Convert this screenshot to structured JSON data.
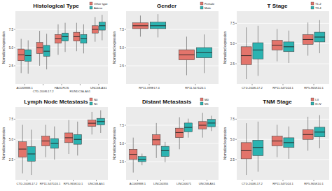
{
  "chart_data": [
    {
      "type": "box",
      "title": "Histological Type",
      "y_label": "Normalized expression",
      "categories": [
        "AC069888.1",
        "CTD-2008L17.2",
        "HAGLROS",
        "RUNDC3A-AS1",
        "UNC5B-AS1"
      ],
      "ylim": [
        0,
        10
      ],
      "yticks": [
        {
          "value": 2.5,
          "label": "2.5"
        },
        {
          "value": 5,
          "label": "5.0"
        },
        {
          "value": 7.5,
          "label": "7.5"
        }
      ],
      "grid": true,
      "legend": "top-right",
      "series": [
        {
          "name": "Other type",
          "color": "#E3746B",
          "q1": [
            3.2,
            4.2,
            5.6,
            5.9,
            7.0
          ],
          "median": [
            4.0,
            5.0,
            6.2,
            6.5,
            7.5
          ],
          "q3": [
            4.8,
            5.7,
            6.8,
            7.1,
            8.0
          ],
          "whisker_low": [
            1.5,
            2.5,
            4.0,
            4.5,
            5.8
          ],
          "whisker_high": [
            6.2,
            7.3,
            8.2,
            8.4,
            9.2
          ]
        },
        {
          "name": "Adeno",
          "color": "#2BB3B1",
          "q1": [
            3.1,
            3.8,
            5.9,
            5.6,
            7.4
          ],
          "median": [
            3.9,
            4.5,
            6.5,
            6.2,
            8.0
          ],
          "q3": [
            4.7,
            5.3,
            7.0,
            6.8,
            8.5
          ],
          "whisker_low": [
            1.4,
            2.0,
            4.4,
            4.2,
            6.0
          ],
          "whisker_high": [
            6.0,
            6.9,
            8.4,
            8.2,
            9.5
          ]
        }
      ]
    },
    {
      "type": "box",
      "title": "Gender",
      "y_label": "Normalized expression",
      "categories": [
        "RP11-399E17.4",
        "RP11-547D24.1"
      ],
      "ylim": [
        0,
        10
      ],
      "yticks": [
        {
          "value": 2.5,
          "label": "2.5"
        },
        {
          "value": 5,
          "label": "5.0"
        },
        {
          "value": 7.5,
          "label": "7.5"
        }
      ],
      "grid": true,
      "legend": "top-right",
      "series": [
        {
          "name": "Female",
          "color": "#E3746B",
          "q1": [
            7.6,
            3.3
          ],
          "median": [
            8.0,
            4.0
          ],
          "q3": [
            8.4,
            4.7
          ],
          "whisker_low": [
            6.5,
            1.2
          ],
          "whisker_high": [
            9.4,
            6.5
          ]
        },
        {
          "name": "Male",
          "color": "#2BB3B1",
          "q1": [
            7.6,
            3.6
          ],
          "median": [
            8.0,
            4.3
          ],
          "q3": [
            8.5,
            5.0
          ],
          "whisker_low": [
            6.4,
            1.5
          ],
          "whisker_high": [
            9.6,
            6.8
          ]
        }
      ]
    },
    {
      "type": "box",
      "title": "T Stage",
      "y_label": "Normalized expression",
      "categories": [
        "CTD-2008L17.2",
        "RP11-547D24.1",
        "RP5-965K10.1"
      ],
      "ylim": [
        0,
        9
      ],
      "yticks": [
        {
          "value": 2.5,
          "label": "2.5"
        },
        {
          "value": 5,
          "label": "5.0"
        },
        {
          "value": 7.5,
          "label": "7.5"
        }
      ],
      "grid": true,
      "legend": "top-right",
      "series": [
        {
          "name": "T1-2",
          "color": "#E3746B",
          "q1": [
            2.4,
            4.2,
            4.9
          ],
          "median": [
            3.5,
            4.8,
            5.5
          ],
          "q3": [
            4.6,
            5.4,
            6.1
          ],
          "whisker_low": [
            0.6,
            2.8,
            3.5
          ],
          "whisker_high": [
            7.0,
            6.8,
            7.6
          ]
        },
        {
          "name": "T3-4",
          "color": "#2BB3B1",
          "q1": [
            3.1,
            4.0,
            5.2
          ],
          "median": [
            4.2,
            4.6,
            5.8
          ],
          "q3": [
            5.1,
            5.2,
            6.4
          ],
          "whisker_low": [
            1.0,
            2.6,
            3.8
          ],
          "whisker_high": [
            7.2,
            6.6,
            7.9
          ]
        }
      ]
    },
    {
      "type": "box",
      "title": "Lymph Node Metastasis",
      "y_label": "Normalized expression",
      "categories": [
        "CTD-2008L17.2",
        "RP11-547D24.1",
        "RP5-965K10.1",
        "UNC5B-AS1"
      ],
      "ylim": [
        0,
        9
      ],
      "yticks": [
        {
          "value": 2.5,
          "label": "2.5"
        },
        {
          "value": 5,
          "label": "5.0"
        },
        {
          "value": 7.5,
          "label": "7.5"
        }
      ],
      "grid": true,
      "legend": "top-right",
      "series": [
        {
          "name": "N0",
          "color": "#E3746B",
          "q1": [
            2.8,
            4.2,
            4.6,
            6.6
          ],
          "median": [
            3.8,
            4.8,
            5.2,
            7.0
          ],
          "q3": [
            4.7,
            5.4,
            5.8,
            7.4
          ],
          "whisker_low": [
            0.8,
            2.8,
            3.2,
            5.6
          ],
          "whisker_high": [
            6.8,
            6.8,
            7.4,
            8.4
          ]
        },
        {
          "name": "N1",
          "color": "#2BB3B1",
          "q1": [
            2.3,
            3.9,
            4.4,
            6.8
          ],
          "median": [
            3.2,
            4.5,
            5.0,
            7.2
          ],
          "q3": [
            4.1,
            5.1,
            5.6,
            7.6
          ],
          "whisker_low": [
            0.6,
            2.5,
            3.0,
            5.8
          ],
          "whisker_high": [
            6.2,
            6.6,
            7.2,
            8.6
          ]
        }
      ]
    },
    {
      "type": "box",
      "title": "Distant Metastasis",
      "y_label": "Normalized expression",
      "categories": [
        "AC069888.1",
        "LINC00355",
        "LINC00671",
        "UNC5B-AS1"
      ],
      "ylim": [
        0,
        10
      ],
      "yticks": [
        {
          "value": 2.5,
          "label": "2.5"
        },
        {
          "value": 5,
          "label": "5.0"
        },
        {
          "value": 7.5,
          "label": "7.5"
        }
      ],
      "grid": true,
      "legend": "top-right",
      "series": [
        {
          "name": "M0",
          "color": "#E3746B",
          "q1": [
            2.8,
            4.8,
            5.8,
            7.0
          ],
          "median": [
            3.5,
            5.5,
            6.5,
            7.5
          ],
          "q3": [
            4.2,
            6.2,
            7.1,
            8.0
          ],
          "whisker_low": [
            1.0,
            3.0,
            4.2,
            5.8
          ],
          "whisker_high": [
            5.8,
            7.8,
            8.6,
            9.2
          ]
        },
        {
          "name": "M1",
          "color": "#2BB3B1",
          "q1": [
            2.5,
            3.2,
            6.6,
            7.3
          ],
          "median": [
            2.8,
            4.0,
            7.2,
            7.8
          ],
          "q3": [
            3.2,
            4.6,
            7.8,
            8.3
          ],
          "whisker_low": [
            2.0,
            2.4,
            5.8,
            6.7
          ],
          "whisker_high": [
            3.6,
            5.2,
            8.4,
            8.8
          ]
        }
      ]
    },
    {
      "type": "box",
      "title": "TNM Stage",
      "y_label": "Normalized expression",
      "categories": [
        "CTD-2008L17.2",
        "RP11-547D24.1",
        "RP5-965K10.1"
      ],
      "ylim": [
        0,
        9
      ],
      "yticks": [
        {
          "value": 2.5,
          "label": "2.5"
        },
        {
          "value": 5,
          "label": "5.0"
        },
        {
          "value": 7.5,
          "label": "7.5"
        }
      ],
      "grid": true,
      "legend": "top-right",
      "series": [
        {
          "name": "I-II",
          "color": "#E3746B",
          "q1": [
            2.6,
            4.2,
            5.0
          ],
          "median": [
            3.6,
            4.8,
            5.6
          ],
          "q3": [
            4.6,
            5.4,
            6.2
          ],
          "whisker_low": [
            0.6,
            2.8,
            3.6
          ],
          "whisker_high": [
            7.0,
            6.8,
            7.8
          ]
        },
        {
          "name": "III-IV",
          "color": "#2BB3B1",
          "q1": [
            3.0,
            4.0,
            5.3
          ],
          "median": [
            4.0,
            4.6,
            5.9
          ],
          "q3": [
            4.9,
            5.2,
            6.5
          ],
          "whisker_low": [
            1.0,
            2.6,
            3.9
          ],
          "whisker_high": [
            7.2,
            6.6,
            8.0
          ]
        }
      ]
    }
  ]
}
